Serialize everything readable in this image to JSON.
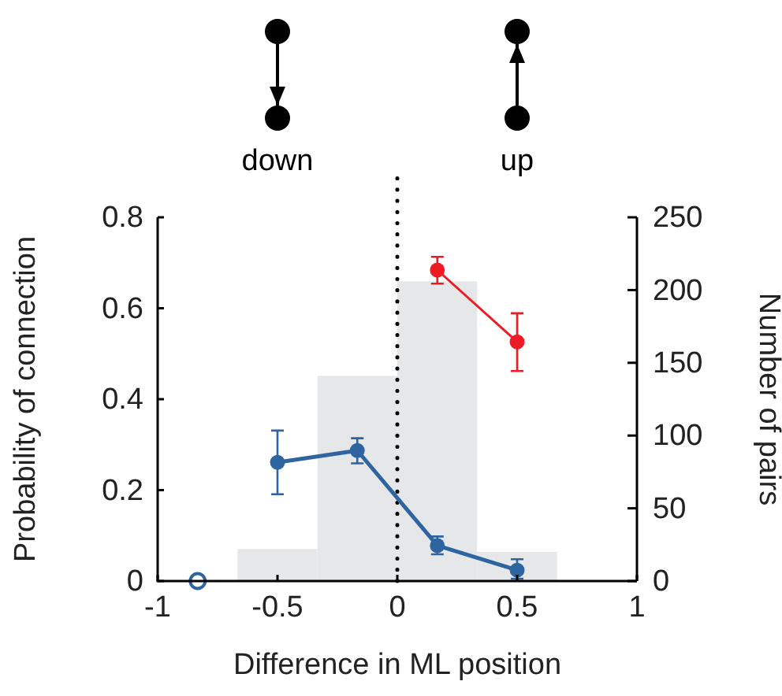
{
  "chart_data": {
    "type": "line",
    "xlabel": "Difference in ML position",
    "ylabel": "Probability of connection",
    "y2label": "Number of pairs",
    "xlim": [
      -1,
      1
    ],
    "xticks": [
      -1,
      -0.5,
      0,
      0.5,
      1
    ],
    "ylim": [
      0,
      0.8
    ],
    "yticks": [
      0,
      0.2,
      0.4,
      0.6,
      0.8
    ],
    "y2lim": [
      0,
      250
    ],
    "y2ticks": [
      0,
      50,
      100,
      150,
      200,
      250
    ],
    "marker": "circle",
    "line_style": "solid",
    "series": [
      {
        "type": "histogram",
        "axis": "y2",
        "color": "#e6e7e8",
        "bins": [
          -0.667,
          -0.333,
          0,
          0.333,
          0.667
        ],
        "values": [
          22,
          141,
          206,
          20
        ]
      },
      {
        "type": "scatter",
        "color": "#2e64a0",
        "x": [
          -0.833
        ],
        "values": [
          0
        ]
      },
      {
        "type": "line",
        "color": "#2e64a0",
        "x": [
          -0.5,
          -0.167,
          0.167,
          0.5
        ],
        "values": [
          0.261,
          0.287,
          0.078,
          0.024
        ],
        "errors": [
          [
            0.191,
            0.331
          ],
          [
            0.259,
            0.314
          ],
          [
            0.059,
            0.098
          ],
          [
            0.005,
            0.048
          ]
        ]
      },
      {
        "type": "line",
        "color": "#ed1c24",
        "x": [
          0.167,
          0.5
        ],
        "values": [
          0.684,
          0.526
        ],
        "errors": [
          [
            0.654,
            0.713
          ],
          [
            0.462,
            0.589
          ]
        ]
      }
    ],
    "ref_lines": [
      {
        "axis": "x",
        "value": 0,
        "line_style": "dotted",
        "color": "#000000"
      }
    ],
    "annotations": [
      "down",
      "up"
    ]
  }
}
